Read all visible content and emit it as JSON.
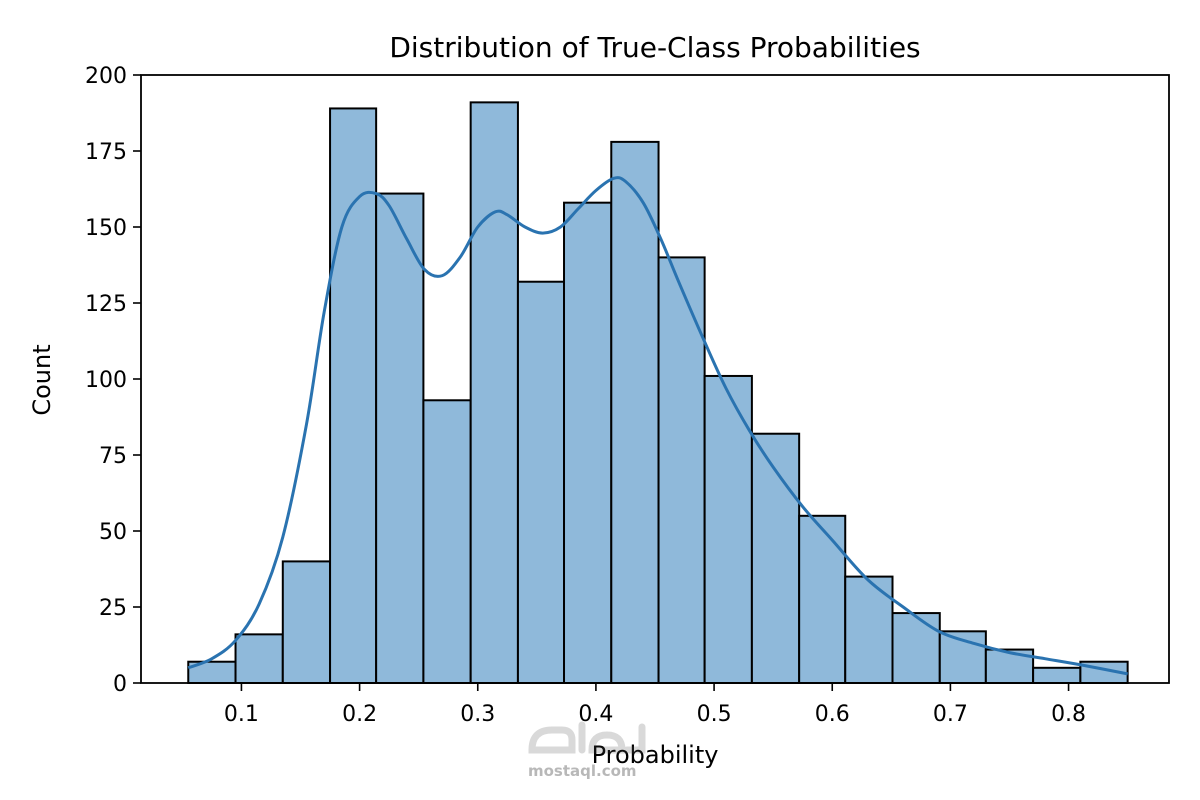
{
  "chart_data": {
    "type": "histogram",
    "title": "Distribution of True-Class Probabilities",
    "xlabel": "Probability",
    "ylabel": "Count",
    "xlim": [
      0.015,
      0.885
    ],
    "ylim": [
      0,
      200
    ],
    "xticks": [
      "0.1",
      "0.2",
      "0.3",
      "0.4",
      "0.5",
      "0.6",
      "0.7",
      "0.8"
    ],
    "xtick_values": [
      0.1,
      0.2,
      0.3,
      0.4,
      0.5,
      0.6,
      0.7,
      0.8
    ],
    "yticks": [
      "0",
      "25",
      "50",
      "75",
      "100",
      "125",
      "150",
      "175",
      "200"
    ],
    "ytick_values": [
      0,
      25,
      50,
      75,
      100,
      125,
      150,
      175,
      200
    ],
    "bin_edges": [
      0.055,
      0.095,
      0.135,
      0.175,
      0.214,
      0.254,
      0.294,
      0.334,
      0.373,
      0.413,
      0.453,
      0.492,
      0.532,
      0.572,
      0.611,
      0.651,
      0.691,
      0.73,
      0.77,
      0.81,
      0.85
    ],
    "counts": [
      7,
      16,
      40,
      189,
      161,
      93,
      191,
      132,
      158,
      178,
      140,
      101,
      82,
      55,
      35,
      23,
      17,
      11,
      5,
      7
    ],
    "kde": {
      "x": [
        0.055,
        0.075,
        0.095,
        0.115,
        0.135,
        0.155,
        0.17,
        0.185,
        0.2,
        0.214,
        0.225,
        0.24,
        0.255,
        0.27,
        0.285,
        0.3,
        0.315,
        0.325,
        0.34,
        0.355,
        0.37,
        0.385,
        0.4,
        0.415,
        0.425,
        0.44,
        0.455,
        0.47,
        0.49,
        0.51,
        0.53,
        0.55,
        0.575,
        0.6,
        0.63,
        0.66,
        0.69,
        0.72,
        0.75,
        0.78,
        0.81,
        0.85
      ],
      "y": [
        5,
        8,
        14,
        26,
        48,
        85,
        122,
        150,
        160,
        161,
        157,
        146,
        136,
        134,
        140,
        150,
        155,
        154,
        150,
        148,
        150,
        156,
        162,
        166,
        165,
        158,
        146,
        132,
        114,
        97,
        83,
        71,
        58,
        47,
        34,
        25,
        17,
        13,
        10,
        8,
        6,
        3
      ]
    },
    "bar_color": "#8fb9da",
    "bar_edge_color": "#000000",
    "line_color": "#2a73b0",
    "grid": false,
    "legend": "none"
  },
  "watermark": {
    "text": "mostaql.com"
  }
}
